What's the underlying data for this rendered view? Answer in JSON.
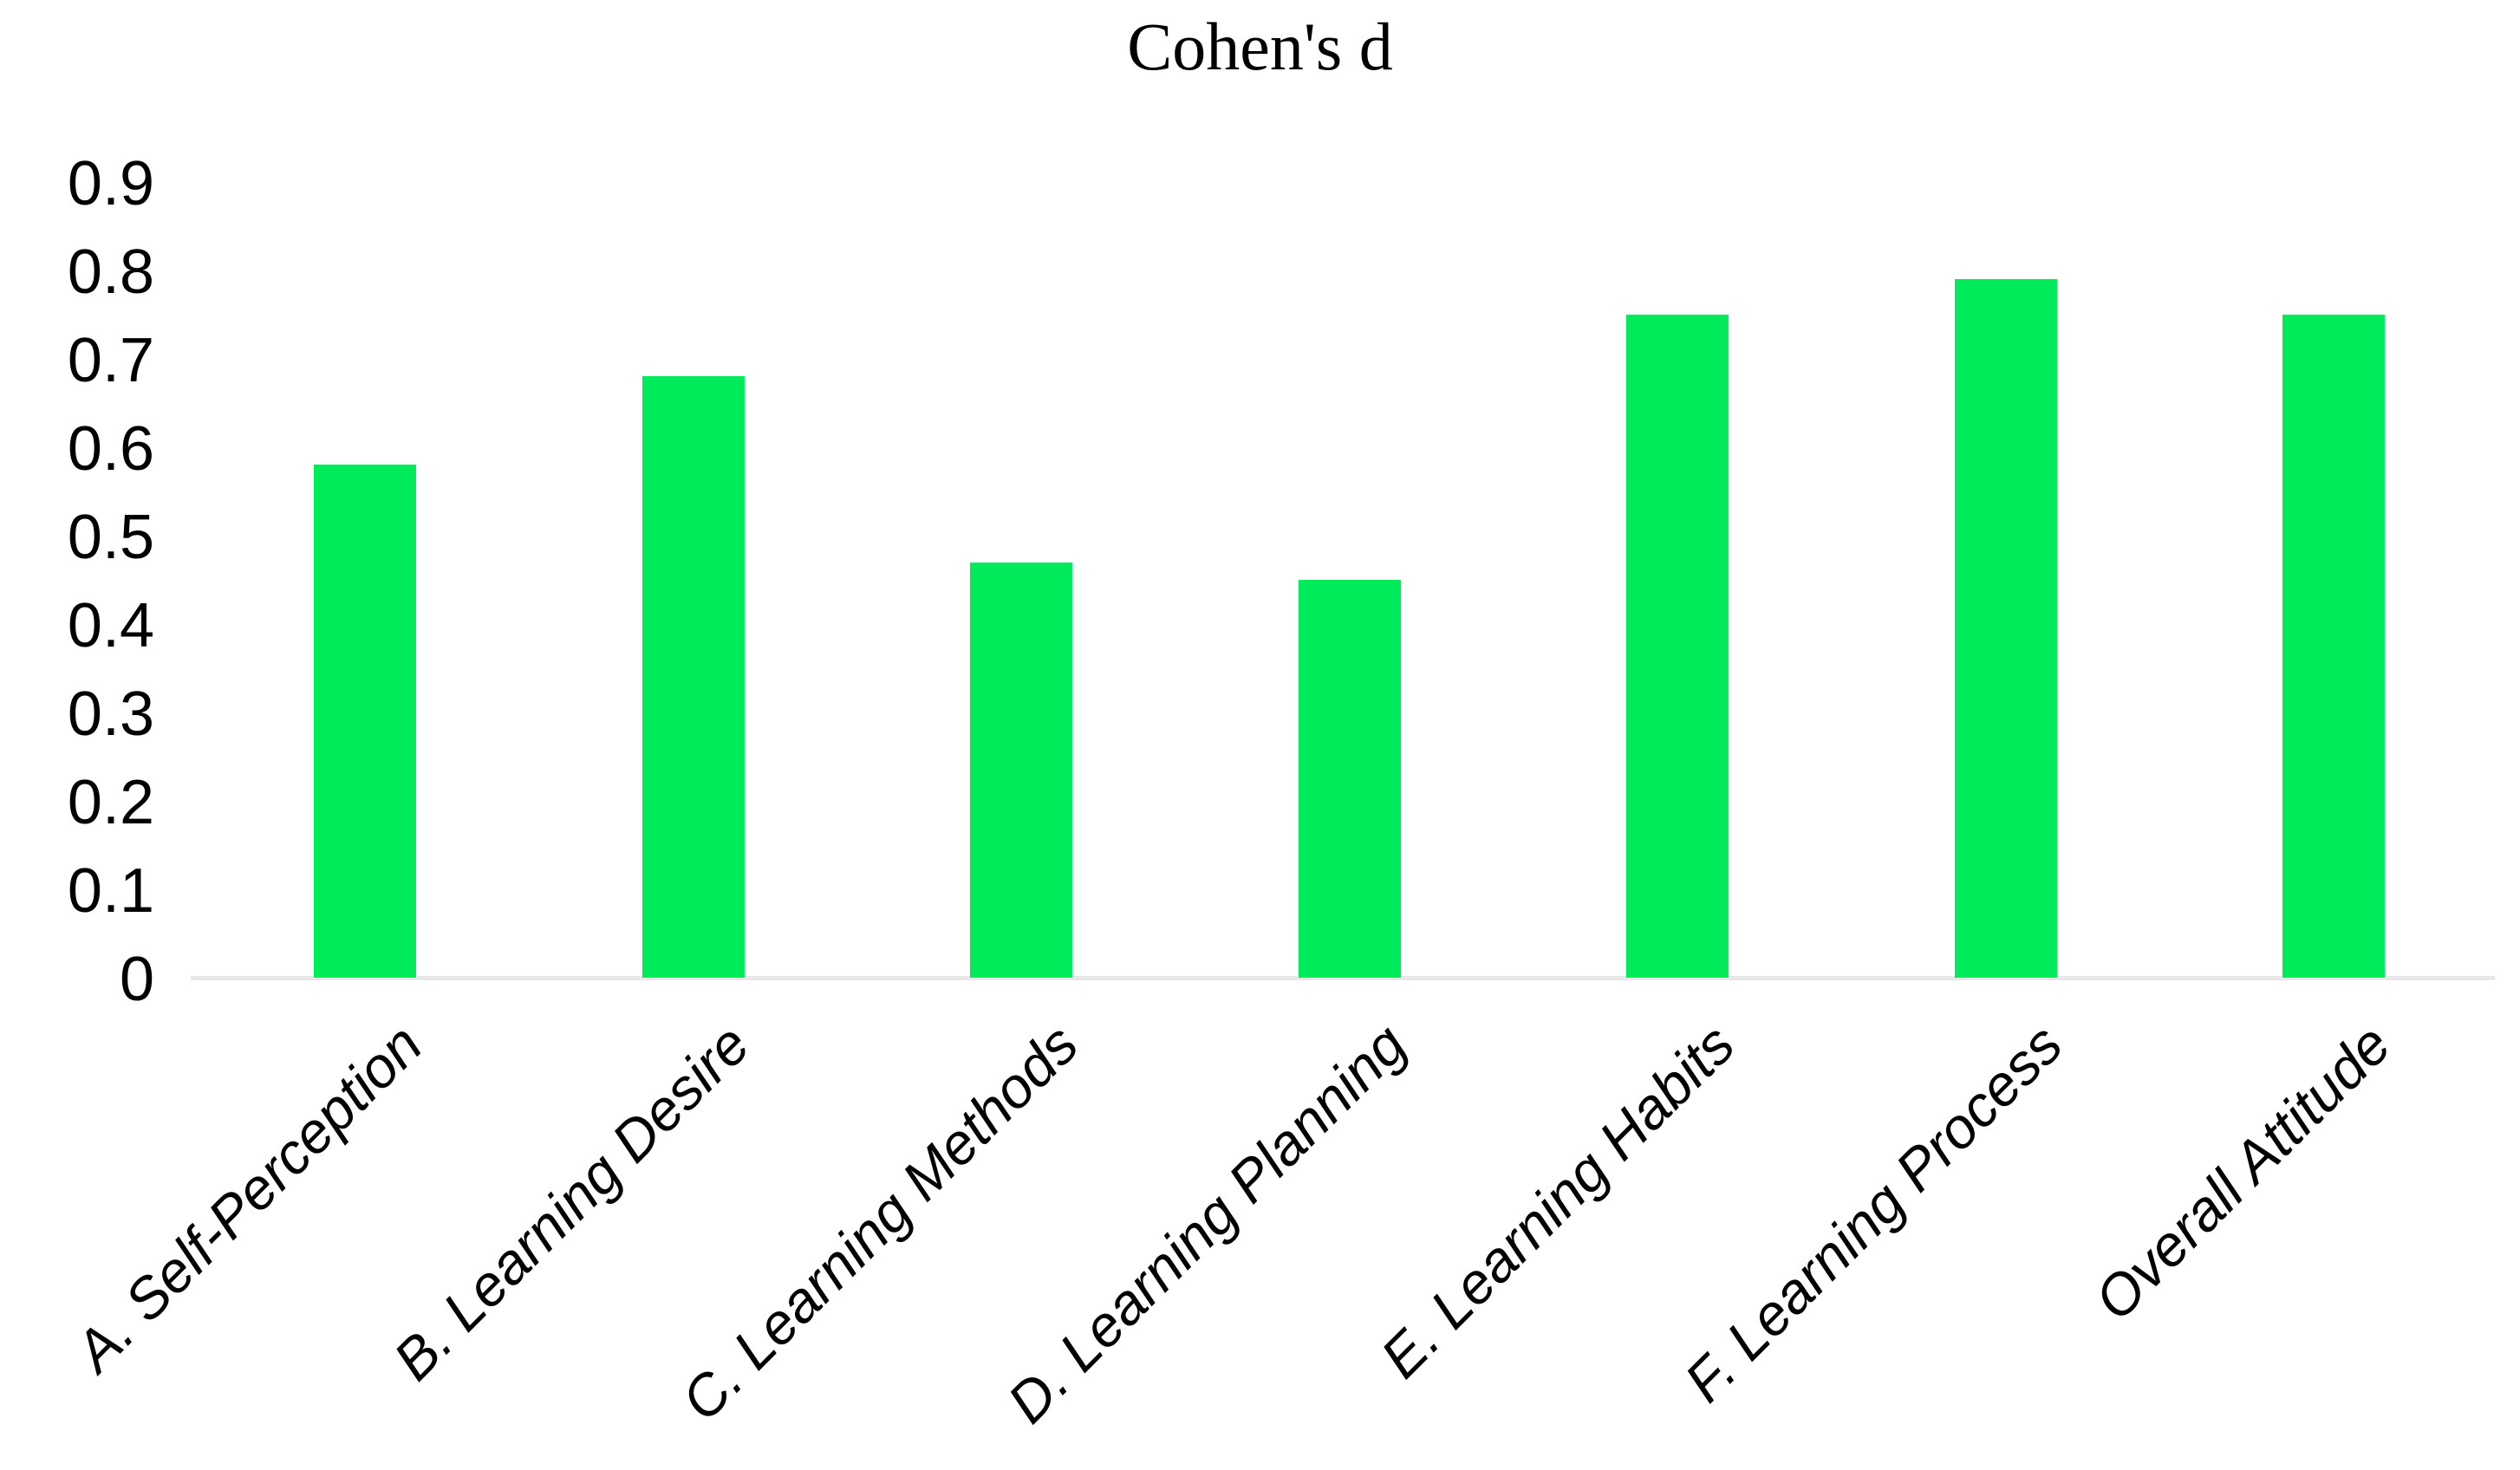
{
  "figure": {
    "title": "Cohen's d"
  },
  "chart_data": {
    "type": "bar",
    "title": "Cohen's d",
    "categories": [
      "A. Self-Perception",
      "B. Learning Desire",
      "C. Learning Methods",
      "D. Learning Planning",
      "E. Learning Habits",
      "F. Learning Process",
      "Overall Attitude"
    ],
    "values": [
      0.58,
      0.68,
      0.47,
      0.45,
      0.75,
      0.79,
      0.75
    ],
    "xlabel": "",
    "ylabel": "",
    "ylim": [
      0,
      0.9
    ],
    "ytick_step": 0.1,
    "yticks": [
      "0",
      "0.1",
      "0.2",
      "0.3",
      "0.4",
      "0.5",
      "0.6",
      "0.7",
      "0.8",
      "0.9"
    ],
    "grid": "off",
    "legend": "none",
    "x_label_rotation_deg": 45,
    "colors": {
      "bar": "#00EB5A",
      "axis_line": "#E8E8E8",
      "text": "#000000",
      "background": "#FFFFFF"
    }
  }
}
